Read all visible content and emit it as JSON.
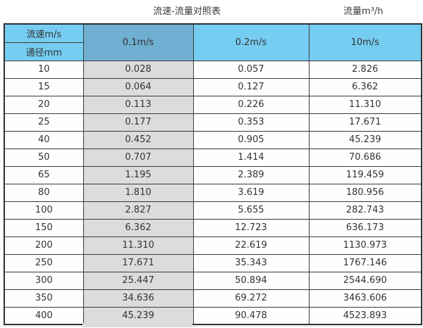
{
  "titles": {
    "main": "流速-流量对照表",
    "right": "流量m³/h"
  },
  "header": {
    "velocity_label": "流速m/s",
    "diameter_label": "通径mm",
    "columns": [
      "0.1m/s",
      "0.2m/s",
      "10m/s"
    ]
  },
  "colors": {
    "header_blue": "#76CDF2",
    "header_selected_blue": "#6FAFD1",
    "selected_column_gray": "#DCDCDC",
    "border_dark": "#3A3A3A",
    "text": "#333333"
  },
  "rows": [
    {
      "dn": "10",
      "v01": "0.028",
      "v02": "0.057",
      "v10": "2.826"
    },
    {
      "dn": "15",
      "v01": "0.064",
      "v02": "0.127",
      "v10": "6.362"
    },
    {
      "dn": "20",
      "v01": "0.113",
      "v02": "0.226",
      "v10": "11.310"
    },
    {
      "dn": "25",
      "v01": "0.177",
      "v02": "0.353",
      "v10": "17.671"
    },
    {
      "dn": "40",
      "v01": "0.452",
      "v02": "0.905",
      "v10": "45.239"
    },
    {
      "dn": "50",
      "v01": "0.707",
      "v02": "1.414",
      "v10": "70.686"
    },
    {
      "dn": "65",
      "v01": "1.195",
      "v02": "2.389",
      "v10": "119.459"
    },
    {
      "dn": "80",
      "v01": "1.810",
      "v02": "3.619",
      "v10": "180.956"
    },
    {
      "dn": "100",
      "v01": "2.827",
      "v02": "5.655",
      "v10": "282.743"
    },
    {
      "dn": "150",
      "v01": "6.362",
      "v02": "12.723",
      "v10": "636.173"
    },
    {
      "dn": "200",
      "v01": "11.310",
      "v02": "22.619",
      "v10": "1130.973"
    },
    {
      "dn": "250",
      "v01": "17.671",
      "v02": "35.343",
      "v10": "1767.146"
    },
    {
      "dn": "300",
      "v01": "25.447",
      "v02": "50.894",
      "v10": "2544.690"
    },
    {
      "dn": "350",
      "v01": "34.636",
      "v02": "69.272",
      "v10": "3463.606"
    },
    {
      "dn": "400",
      "v01": "45.239",
      "v02": "90.478",
      "v10": "4523.893"
    }
  ],
  "chart_data": {
    "type": "table",
    "title": "流速-流量对照表",
    "unit_label": "流量m³/h",
    "row_header": "通径mm",
    "col_header": "流速m/s",
    "categories": [
      10,
      15,
      20,
      25,
      40,
      50,
      65,
      80,
      100,
      150,
      200,
      250,
      300,
      350,
      400
    ],
    "series": [
      {
        "name": "0.1m/s",
        "values": [
          0.028,
          0.064,
          0.113,
          0.177,
          0.452,
          0.707,
          1.195,
          1.81,
          2.827,
          6.362,
          11.31,
          17.671,
          25.447,
          34.636,
          45.239
        ]
      },
      {
        "name": "0.2m/s",
        "values": [
          0.057,
          0.127,
          0.226,
          0.353,
          0.905,
          1.414,
          2.389,
          3.619,
          5.655,
          12.723,
          22.619,
          35.343,
          50.894,
          69.272,
          90.478
        ]
      },
      {
        "name": "10m/s",
        "values": [
          2.826,
          6.362,
          11.31,
          17.671,
          45.239,
          70.686,
          119.459,
          180.956,
          282.743,
          636.173,
          1130.973,
          1767.146,
          2544.69,
          3463.606,
          4523.893
        ]
      }
    ],
    "highlighted_series": "0.1m/s"
  }
}
